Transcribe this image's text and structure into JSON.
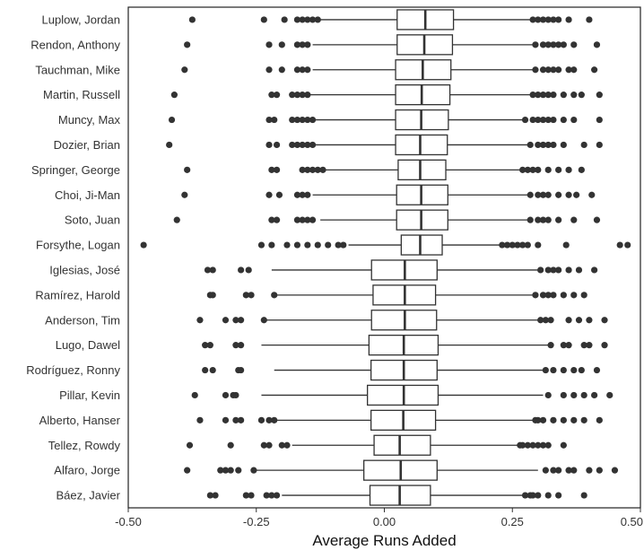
{
  "chart_data": {
    "type": "boxplot",
    "xlabel": "Average Runs Added",
    "ylabel": "",
    "xlim": [
      -0.5,
      0.5
    ],
    "x_ticks": [
      -0.5,
      -0.25,
      0,
      0.25,
      0.5
    ],
    "x_tick_labels": [
      "-0.50",
      "-0.25",
      "0.00",
      "0.25",
      "0.50"
    ],
    "grid": false,
    "categories": [
      "Luplow, Jordan",
      "Rendon, Anthony",
      "Tauchman, Mike",
      "Martin, Russell",
      "Muncy, Max",
      "Dozier, Brian",
      "Springer, George",
      "Choi, Ji-Man",
      "Soto, Juan",
      "Forsythe, Logan",
      "Iglesias, José",
      "Ramírez, Harold",
      "Anderson, Tim",
      "Lugo, Dawel",
      "Rodríguez, Ronny",
      "Pillar, Kevin",
      "Alberto, Hanser",
      "Tellez, Rowdy",
      "Alfaro, Jorge",
      "Báez, Javier"
    ],
    "boxes": [
      {
        "whisker_low": -0.13,
        "q1": 0.025,
        "median": 0.08,
        "q3": 0.135,
        "whisker_high": 0.285,
        "outliers_low": [
          -0.375,
          -0.235,
          -0.195,
          -0.17,
          -0.16,
          -0.15,
          -0.14,
          -0.13
        ],
        "outliers_high": [
          0.29,
          0.3,
          0.31,
          0.32,
          0.33,
          0.34,
          0.36,
          0.4
        ]
      },
      {
        "whisker_low": -0.14,
        "q1": 0.025,
        "median": 0.078,
        "q3": 0.133,
        "whisker_high": 0.29,
        "outliers_low": [
          -0.385,
          -0.225,
          -0.2,
          -0.17,
          -0.16,
          -0.15
        ],
        "outliers_high": [
          0.295,
          0.31,
          0.32,
          0.33,
          0.34,
          0.35,
          0.37,
          0.415
        ]
      },
      {
        "whisker_low": -0.14,
        "q1": 0.022,
        "median": 0.075,
        "q3": 0.13,
        "whisker_high": 0.29,
        "outliers_low": [
          -0.39,
          -0.225,
          -0.2,
          -0.17,
          -0.16,
          -0.15
        ],
        "outliers_high": [
          0.295,
          0.31,
          0.32,
          0.33,
          0.34,
          0.36,
          0.37,
          0.41
        ]
      },
      {
        "whisker_low": -0.145,
        "q1": 0.022,
        "median": 0.073,
        "q3": 0.128,
        "whisker_high": 0.285,
        "outliers_low": [
          -0.41,
          -0.22,
          -0.21,
          -0.18,
          -0.17,
          -0.16,
          -0.15
        ],
        "outliers_high": [
          0.29,
          0.3,
          0.31,
          0.32,
          0.33,
          0.35,
          0.37,
          0.385,
          0.42
        ]
      },
      {
        "whisker_low": -0.145,
        "q1": 0.022,
        "median": 0.072,
        "q3": 0.125,
        "whisker_high": 0.27,
        "outliers_low": [
          -0.415,
          -0.225,
          -0.215,
          -0.18,
          -0.17,
          -0.16,
          -0.15,
          -0.14
        ],
        "outliers_high": [
          0.275,
          0.29,
          0.3,
          0.31,
          0.32,
          0.33,
          0.35,
          0.37,
          0.42
        ]
      },
      {
        "whisker_low": -0.145,
        "q1": 0.022,
        "median": 0.07,
        "q3": 0.123,
        "whisker_high": 0.28,
        "outliers_low": [
          -0.42,
          -0.225,
          -0.21,
          -0.18,
          -0.17,
          -0.16,
          -0.15,
          -0.14
        ],
        "outliers_high": [
          0.285,
          0.3,
          0.31,
          0.32,
          0.33,
          0.35,
          0.39,
          0.42
        ]
      },
      {
        "whisker_low": -0.12,
        "q1": 0.027,
        "median": 0.07,
        "q3": 0.12,
        "whisker_high": 0.265,
        "outliers_low": [
          -0.385,
          -0.22,
          -0.21,
          -0.16,
          -0.15,
          -0.14,
          -0.13,
          -0.12
        ],
        "outliers_high": [
          0.27,
          0.28,
          0.29,
          0.3,
          0.32,
          0.34,
          0.36,
          0.385
        ]
      },
      {
        "whisker_low": -0.14,
        "q1": 0.024,
        "median": 0.072,
        "q3": 0.124,
        "whisker_high": 0.28,
        "outliers_low": [
          -0.39,
          -0.225,
          -0.205,
          -0.17,
          -0.16,
          -0.15
        ],
        "outliers_high": [
          0.285,
          0.3,
          0.31,
          0.32,
          0.34,
          0.36,
          0.375,
          0.405
        ]
      },
      {
        "whisker_low": -0.125,
        "q1": 0.024,
        "median": 0.072,
        "q3": 0.124,
        "whisker_high": 0.28,
        "outliers_low": [
          -0.405,
          -0.22,
          -0.21,
          -0.17,
          -0.16,
          -0.15,
          -0.14
        ],
        "outliers_high": [
          0.285,
          0.3,
          0.31,
          0.32,
          0.34,
          0.37,
          0.415
        ]
      },
      {
        "whisker_low": -0.07,
        "q1": 0.033,
        "median": 0.07,
        "q3": 0.113,
        "whisker_high": 0.225,
        "outliers_low": [
          -0.47,
          -0.24,
          -0.22,
          -0.19,
          -0.17,
          -0.15,
          -0.13,
          -0.11,
          -0.09,
          -0.08
        ],
        "outliers_high": [
          0.23,
          0.24,
          0.25,
          0.26,
          0.27,
          0.28,
          0.3,
          0.355,
          0.46,
          0.475
        ]
      },
      {
        "whisker_low": -0.22,
        "q1": -0.025,
        "median": 0.04,
        "q3": 0.103,
        "whisker_high": 0.3,
        "outliers_low": [
          -0.345,
          -0.335,
          -0.28,
          -0.265
        ],
        "outliers_high": [
          0.305,
          0.32,
          0.33,
          0.34,
          0.36,
          0.38,
          0.41
        ]
      },
      {
        "whisker_low": -0.215,
        "q1": -0.022,
        "median": 0.04,
        "q3": 0.1,
        "whisker_high": 0.29,
        "outliers_low": [
          -0.34,
          -0.335,
          -0.27,
          -0.26,
          -0.215
        ],
        "outliers_high": [
          0.295,
          0.31,
          0.32,
          0.33,
          0.35,
          0.37,
          0.39
        ]
      },
      {
        "whisker_low": -0.23,
        "q1": -0.025,
        "median": 0.04,
        "q3": 0.102,
        "whisker_high": 0.3,
        "outliers_low": [
          -0.36,
          -0.31,
          -0.29,
          -0.28,
          -0.235
        ],
        "outliers_high": [
          0.305,
          0.315,
          0.325,
          0.36,
          0.38,
          0.4,
          0.43
        ]
      },
      {
        "whisker_low": -0.24,
        "q1": -0.03,
        "median": 0.038,
        "q3": 0.105,
        "whisker_high": 0.32,
        "outliers_low": [
          -0.35,
          -0.34,
          -0.29,
          -0.28
        ],
        "outliers_high": [
          0.325,
          0.35,
          0.36,
          0.39,
          0.4,
          0.43
        ]
      },
      {
        "whisker_low": -0.215,
        "q1": -0.026,
        "median": 0.038,
        "q3": 0.103,
        "whisker_high": 0.31,
        "outliers_low": [
          -0.35,
          -0.335,
          -0.285,
          -0.28
        ],
        "outliers_high": [
          0.315,
          0.33,
          0.35,
          0.37,
          0.385,
          0.415
        ]
      },
      {
        "whisker_low": -0.24,
        "q1": -0.033,
        "median": 0.038,
        "q3": 0.105,
        "whisker_high": 0.31,
        "outliers_low": [
          -0.37,
          -0.31,
          -0.295,
          -0.29
        ],
        "outliers_high": [
          0.32,
          0.35,
          0.37,
          0.39,
          0.41,
          0.44
        ]
      },
      {
        "whisker_low": -0.21,
        "q1": -0.026,
        "median": 0.037,
        "q3": 0.1,
        "whisker_high": 0.29,
        "outliers_low": [
          -0.36,
          -0.31,
          -0.29,
          -0.28,
          -0.24,
          -0.225,
          -0.215
        ],
        "outliers_high": [
          0.295,
          0.3,
          0.31,
          0.33,
          0.35,
          0.37,
          0.39,
          0.42
        ]
      },
      {
        "whisker_low": -0.18,
        "q1": -0.02,
        "median": 0.03,
        "q3": 0.09,
        "whisker_high": 0.26,
        "outliers_low": [
          -0.38,
          -0.3,
          -0.235,
          -0.225,
          -0.2,
          -0.19
        ],
        "outliers_high": [
          0.265,
          0.27,
          0.28,
          0.29,
          0.3,
          0.31,
          0.32,
          0.35
        ]
      },
      {
        "whisker_low": -0.25,
        "q1": -0.04,
        "median": 0.032,
        "q3": 0.103,
        "whisker_high": 0.3,
        "outliers_low": [
          -0.385,
          -0.32,
          -0.31,
          -0.3,
          -0.285,
          -0.255
        ],
        "outliers_high": [
          0.315,
          0.33,
          0.34,
          0.36,
          0.37,
          0.4,
          0.42,
          0.45
        ]
      },
      {
        "whisker_low": -0.2,
        "q1": -0.028,
        "median": 0.03,
        "q3": 0.09,
        "whisker_high": 0.27,
        "outliers_low": [
          -0.34,
          -0.33,
          -0.27,
          -0.26,
          -0.23,
          -0.22,
          -0.21
        ],
        "outliers_high": [
          0.275,
          0.285,
          0.29,
          0.3,
          0.32,
          0.34,
          0.39
        ]
      }
    ]
  }
}
